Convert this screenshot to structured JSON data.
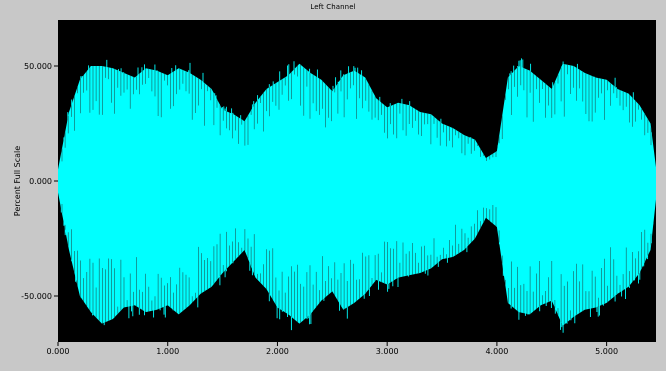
{
  "window": {
    "title": "Left Channel"
  },
  "chart_data": {
    "type": "area",
    "title": "Left Channel",
    "xlabel": "",
    "ylabel": "Percent Full Scale",
    "xlim": [
      0,
      5.45
    ],
    "ylim": [
      -70,
      70
    ],
    "x_ticks": [
      0,
      1,
      2,
      3,
      4,
      5
    ],
    "x_tick_labels": [
      "0.000",
      "1.000",
      "2.000",
      "3.000",
      "4.000",
      "5.000"
    ],
    "y_ticks": [
      50,
      0,
      -50
    ],
    "y_tick_labels": [
      "50.000",
      "0.000",
      "-50.000"
    ],
    "grid": false,
    "colors": {
      "plot_background": "#000000",
      "waveform": "#00ffff",
      "frame": "#c8c8c8"
    },
    "series": [
      {
        "x": [
          0.0,
          0.1,
          0.2,
          0.3,
          0.4,
          0.5,
          0.6,
          0.7,
          0.8,
          0.9,
          1.0,
          1.1,
          1.2,
          1.3,
          1.4,
          1.5,
          1.6,
          1.7,
          1.8,
          1.9,
          2.0,
          2.1,
          2.2,
          2.3,
          2.4,
          2.5,
          2.6,
          2.7,
          2.8,
          2.9,
          3.0,
          3.1,
          3.2,
          3.3,
          3.4,
          3.5,
          3.6,
          3.7,
          3.8,
          3.9,
          4.0,
          4.1,
          4.2,
          4.3,
          4.4,
          4.5,
          4.6,
          4.7,
          4.8,
          4.9,
          5.0,
          5.1,
          5.2,
          5.3,
          5.4,
          5.45
        ],
        "upper": [
          5,
          30,
          44,
          50,
          50,
          49,
          47,
          45,
          49,
          48,
          46,
          49,
          47,
          44,
          40,
          31,
          29,
          26,
          34,
          40,
          43,
          46,
          51,
          47,
          44,
          39,
          46,
          48,
          45,
          36,
          32,
          34,
          33,
          30,
          29,
          25,
          23,
          20,
          18,
          10,
          13,
          45,
          50,
          48,
          44,
          40,
          51,
          50,
          47,
          45,
          44,
          40,
          38,
          33,
          25,
          6
        ],
        "lower": [
          -5,
          -30,
          -50,
          -57,
          -62,
          -60,
          -55,
          -54,
          -57,
          -56,
          -54,
          -58,
          -54,
          -49,
          -46,
          -40,
          -35,
          -30,
          -42,
          -47,
          -55,
          -58,
          -62,
          -58,
          -52,
          -48,
          -56,
          -53,
          -49,
          -43,
          -45,
          -42,
          -41,
          -40,
          -38,
          -34,
          -33,
          -30,
          -25,
          -16,
          -20,
          -53,
          -57,
          -58,
          -54,
          -52,
          -63,
          -59,
          -56,
          -55,
          -53,
          -49,
          -46,
          -40,
          -30,
          -8
        ]
      }
    ]
  }
}
